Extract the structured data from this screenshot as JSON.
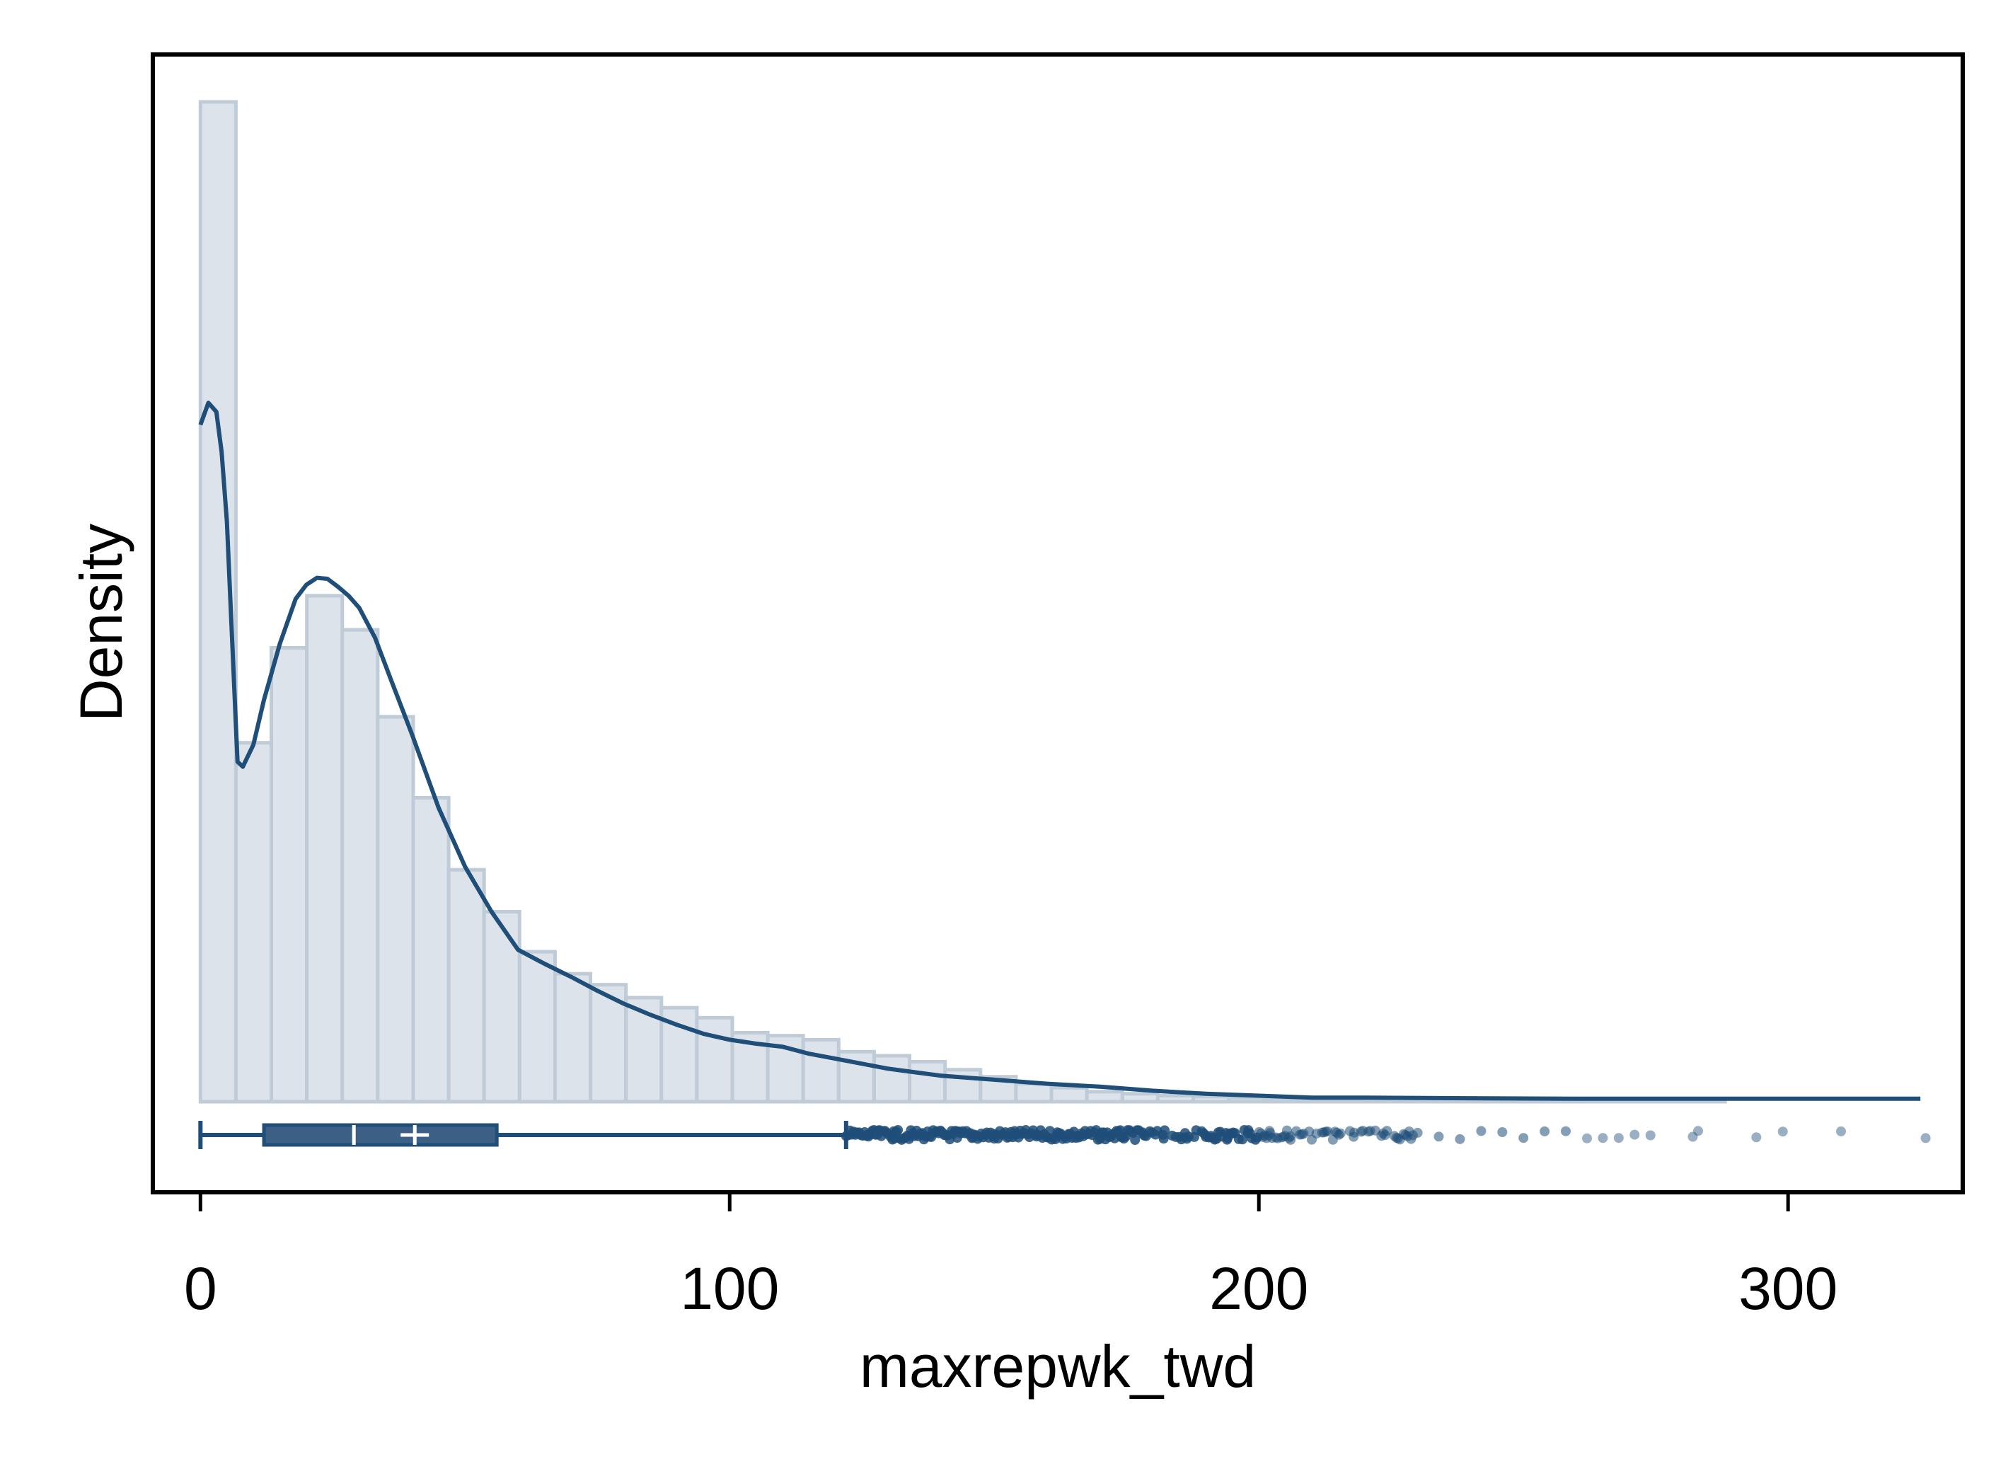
{
  "chart_data": {
    "type": "histogram",
    "xlabel": "maxrepwk_twd",
    "ylabel": "Density",
    "xlim": [
      -9,
      333
    ],
    "xticks": [
      0,
      100,
      200,
      300
    ],
    "xtick_labels": [
      "0",
      "100",
      "200",
      "300"
    ],
    "y_tick_labels_shown": false,
    "grid": false,
    "colors": {
      "bar_fill": "#dde3ea",
      "bar_edge": "#bfcbd7",
      "line": "#1f4e79",
      "box_fill": "#3c5f85",
      "markers": "#1f4e79"
    },
    "histogram": {
      "bin_width": 6.7,
      "bin_start": 0,
      "heights_relative": [
        1.0,
        0.359,
        0.454,
        0.506,
        0.472,
        0.385,
        0.304,
        0.232,
        0.19,
        0.15,
        0.128,
        0.117,
        0.104,
        0.094,
        0.084,
        0.069,
        0.066,
        0.062,
        0.05,
        0.046,
        0.04,
        0.032,
        0.025,
        0.018,
        0.014,
        0.01,
        0.008,
        0.006,
        0.005,
        0.004,
        0.003,
        0.003,
        0.002,
        0.002,
        0.002,
        0.001,
        0.001,
        0.001,
        0.001,
        0.001,
        0.001,
        0.001,
        0.001,
        0.0,
        0.0,
        0.0,
        0.0,
        0.0,
        0.0,
        0.0
      ]
    },
    "kde": {
      "x": [
        0,
        1.5,
        3,
        4,
        5,
        7,
        8,
        10,
        12,
        15,
        18,
        20,
        22,
        24,
        26,
        28,
        30,
        33,
        36,
        40,
        45,
        50,
        55,
        60,
        65,
        70,
        75,
        80,
        85,
        90,
        95,
        100,
        105,
        110,
        115,
        120,
        130,
        140,
        150,
        160,
        170,
        180,
        190,
        200,
        210,
        220,
        240,
        260,
        280,
        300,
        325
      ],
      "y_relative": [
        0.677,
        0.699,
        0.69,
        0.65,
        0.58,
        0.34,
        0.335,
        0.357,
        0.402,
        0.458,
        0.503,
        0.517,
        0.524,
        0.523,
        0.515,
        0.506,
        0.494,
        0.464,
        0.422,
        0.367,
        0.294,
        0.235,
        0.19,
        0.152,
        0.138,
        0.125,
        0.111,
        0.098,
        0.087,
        0.077,
        0.068,
        0.062,
        0.058,
        0.055,
        0.048,
        0.043,
        0.033,
        0.026,
        0.022,
        0.018,
        0.015,
        0.011,
        0.008,
        0.006,
        0.004,
        0.004,
        0.0035,
        0.003,
        0.003,
        0.003,
        0.003
      ]
    },
    "boxplot": {
      "whisker_low": 0,
      "q1": 12,
      "median": 29,
      "mean": 40.5,
      "q3": 56,
      "whisker_high": 122,
      "outliers_range": [
        122,
        326
      ],
      "sample_outliers": [
        124,
        126,
        128,
        131,
        134,
        137,
        140,
        143,
        146,
        150,
        154,
        158,
        162,
        166,
        170,
        174,
        178,
        182,
        186,
        190,
        194,
        198,
        202,
        206,
        210,
        214,
        218,
        222,
        226,
        230,
        234,
        238,
        242,
        246,
        250,
        254,
        258,
        262,
        265,
        268,
        271,
        274,
        282,
        283,
        294,
        299,
        310,
        326
      ]
    }
  }
}
